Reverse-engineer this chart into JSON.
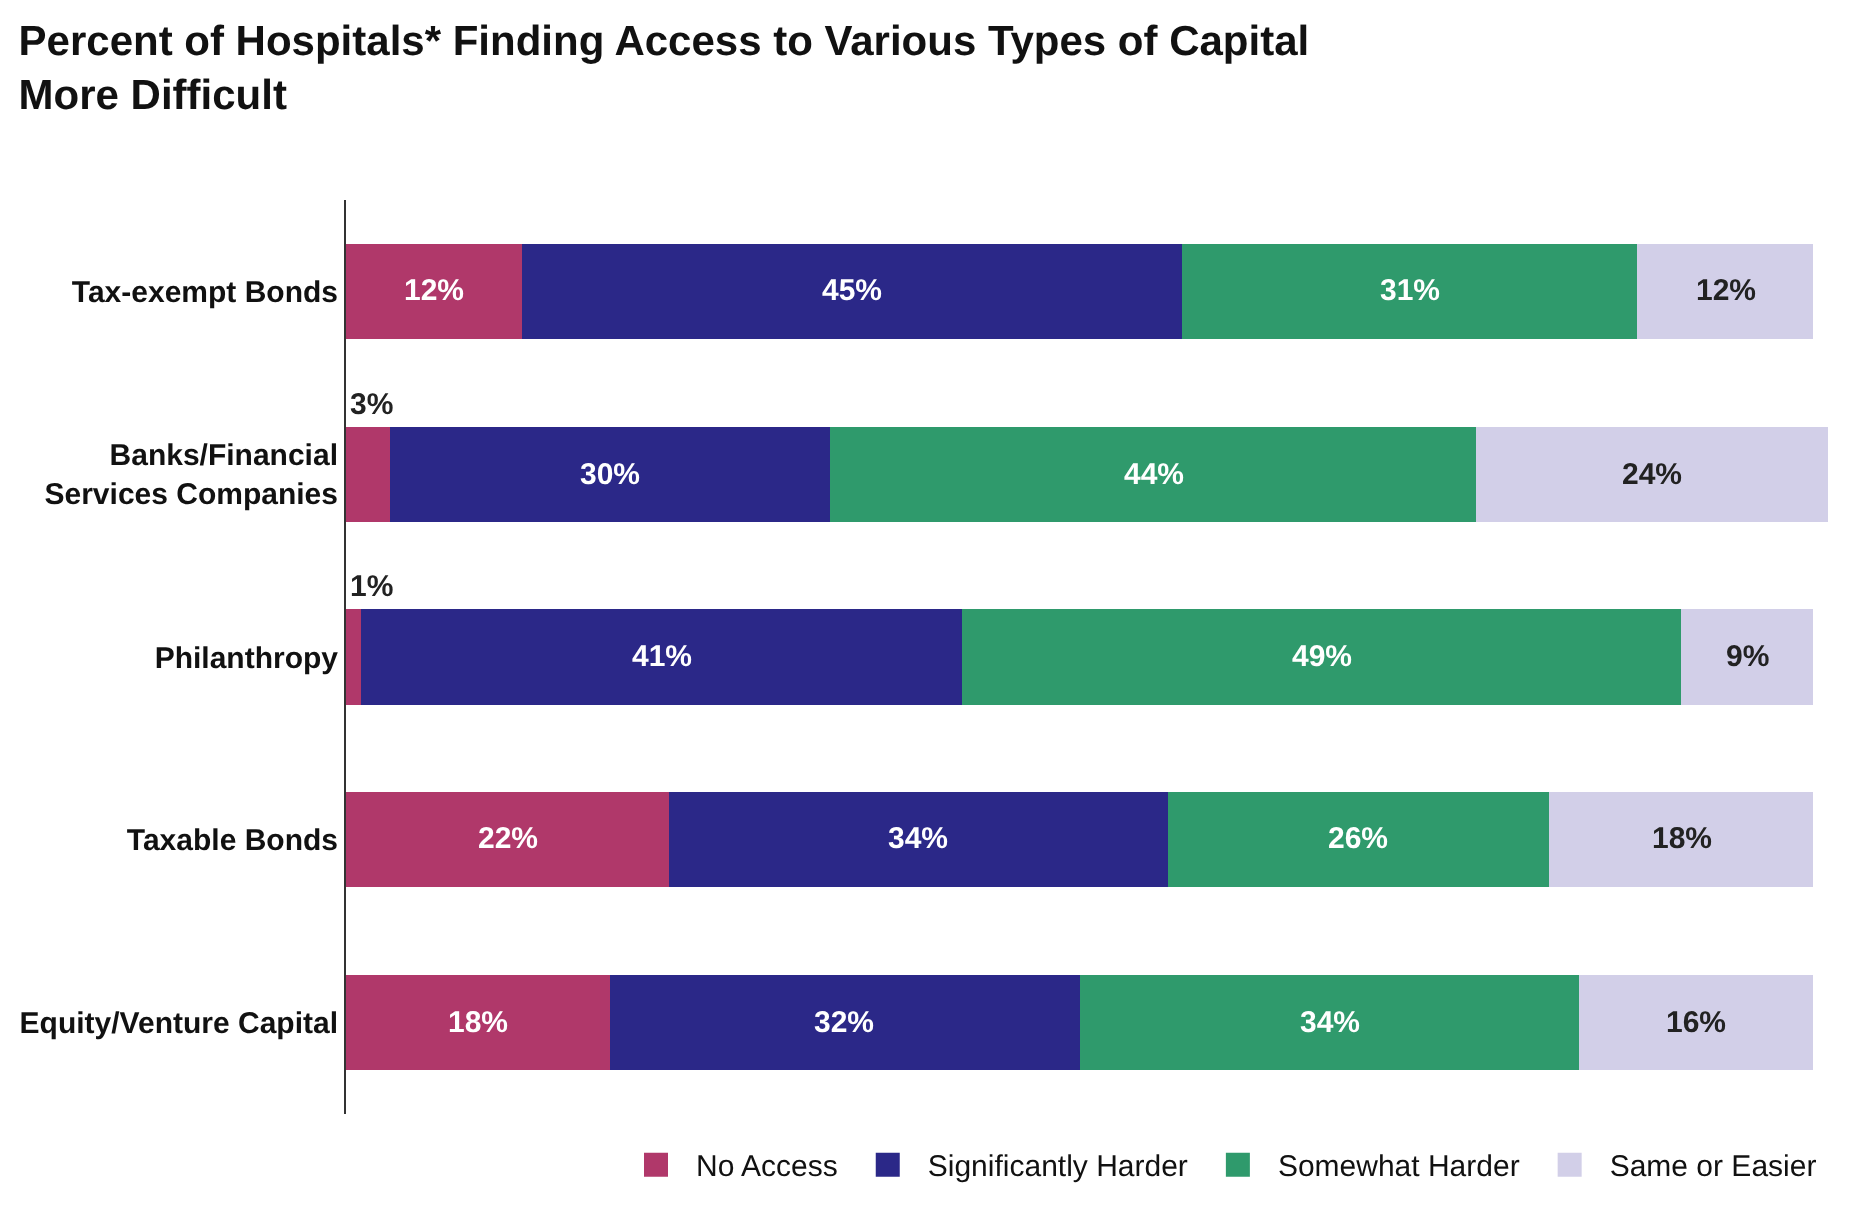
{
  "chart_data": {
    "type": "bar",
    "orientation": "horizontal",
    "stacked": true,
    "title": "Percent of Hospitals* Finding Access to Various Types of Capital\nMore Difficult",
    "categories": [
      "Tax-exempt Bonds",
      "Banks/Financial\nServices Companies",
      "Philanthropy",
      "Taxable Bonds",
      "Equity/Venture Capital"
    ],
    "series": [
      {
        "name": "No Access",
        "color": "#b0386a",
        "values": [
          12,
          3,
          1,
          22,
          18
        ],
        "value_labels": [
          "12%",
          "3%",
          "1%",
          "22%",
          "18%"
        ]
      },
      {
        "name": "Significantly Harder",
        "color": "#2b2888",
        "values": [
          45,
          30,
          41,
          34,
          32
        ],
        "value_labels": [
          "45%",
          "30%",
          "41%",
          "34%",
          "32%"
        ]
      },
      {
        "name": "Somewhat Harder",
        "color": "#2f9a6c",
        "values": [
          31,
          44,
          49,
          26,
          34
        ],
        "value_labels": [
          "31%",
          "44%",
          "49%",
          "26%",
          "34%"
        ]
      },
      {
        "name": "Same or Easier",
        "color": "#d2cfe8",
        "values": [
          12,
          24,
          9,
          18,
          16
        ],
        "value_labels": [
          "12%",
          "24%",
          "9%",
          "18%",
          "16%"
        ]
      }
    ],
    "legend": "bottom"
  }
}
